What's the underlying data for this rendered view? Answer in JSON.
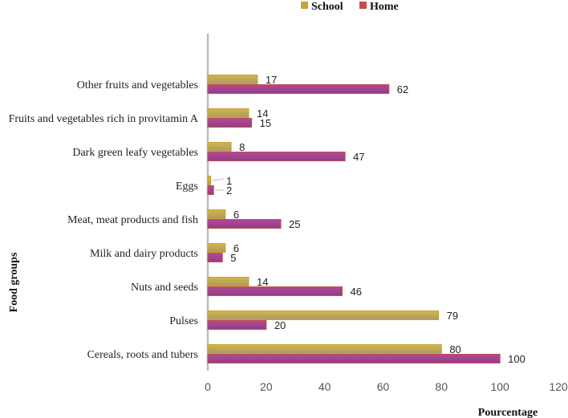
{
  "chart_data": {
    "type": "bar",
    "orientation": "horizontal",
    "categories": [
      "Cereals, roots and tubers",
      "Pulses",
      "Nuts and seeds",
      "Milk and dairy products",
      "Meat, meat products and fish",
      "Eggs",
      "Dark green leafy vegetables",
      "Fruits and vegetables rich in provitamin A",
      "Other fruits and vegetables"
    ],
    "series": [
      {
        "name": "School",
        "color": "#c4a43a",
        "values": [
          80,
          79,
          14,
          6,
          6,
          1,
          8,
          14,
          17
        ]
      },
      {
        "name": "Home",
        "color": "#b03a7a",
        "values": [
          100,
          20,
          46,
          5,
          25,
          2,
          47,
          15,
          62
        ]
      }
    ],
    "xlabel": "Pourcentage",
    "ylabel": "Food groups",
    "xlim": [
      0,
      120
    ],
    "xticks": [
      0,
      20,
      40,
      60,
      80,
      100,
      120
    ],
    "grid": false,
    "legend_position": "top"
  }
}
